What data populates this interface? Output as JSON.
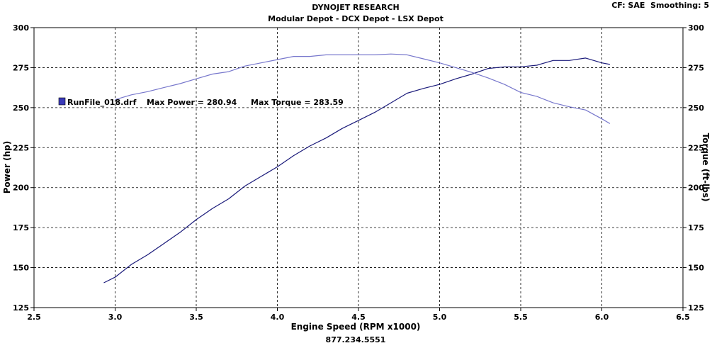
{
  "header": {
    "title": "DYNOJET RESEARCH",
    "subtitle": "Modular Depot - DCX Depot - LSX Depot",
    "settings": "CF: SAE  Smoothing: 5"
  },
  "footer": {
    "phone": "877.234.5551"
  },
  "legend": {
    "run_label": "RunFile_018.drf",
    "max_power_label": "Max Power = 280.94",
    "max_torque_label": "Max Torque = 283.59"
  },
  "chart_data": {
    "type": "line",
    "xlabel": "Engine Speed (RPM x1000)",
    "ylabel_left": "Power (hp)",
    "ylabel_right": "Torque (ft-lbs)",
    "xlim": [
      2.5,
      6.5
    ],
    "ylim": [
      125,
      300
    ],
    "x_ticks": [
      "2.5",
      "3.0",
      "3.5",
      "4.0",
      "4.5",
      "5.0",
      "5.5",
      "6.0",
      "6.5"
    ],
    "y_ticks": [
      "125",
      "150",
      "175",
      "200",
      "225",
      "250",
      "275",
      "300"
    ],
    "grid": true,
    "series": [
      {
        "role": "power",
        "color": "#1a1a7a",
        "x": [
          2.93,
          3.0,
          3.1,
          3.2,
          3.3,
          3.4,
          3.5,
          3.6,
          3.7,
          3.8,
          3.9,
          4.0,
          4.1,
          4.2,
          4.3,
          4.4,
          4.5,
          4.6,
          4.7,
          4.8,
          4.9,
          5.0,
          5.1,
          5.2,
          5.3,
          5.4,
          5.5,
          5.6,
          5.7,
          5.8,
          5.9,
          6.0,
          6.05
        ],
        "values": [
          140.5,
          144,
          152,
          158,
          165,
          172,
          180,
          187,
          193,
          201,
          207,
          213,
          220,
          226,
          231,
          237,
          242,
          247,
          253,
          259,
          262,
          264.5,
          268,
          271,
          274.5,
          275.5,
          275.5,
          276.5,
          279.5,
          279.5,
          281,
          278,
          277
        ]
      },
      {
        "role": "torque",
        "color": "#7777cc",
        "x": [
          3.0,
          3.1,
          3.2,
          3.3,
          3.4,
          3.5,
          3.6,
          3.7,
          3.8,
          3.9,
          4.0,
          4.1,
          4.2,
          4.3,
          4.4,
          4.5,
          4.6,
          4.7,
          4.8,
          4.9,
          5.0,
          5.1,
          5.2,
          5.3,
          5.4,
          5.5,
          5.6,
          5.7,
          5.8,
          5.9,
          6.0,
          6.05
        ],
        "values": [
          255,
          258,
          260,
          262.5,
          265,
          268,
          271,
          272.5,
          276,
          278,
          280,
          282,
          282,
          283,
          283,
          283,
          283,
          283.5,
          283,
          280.5,
          278,
          275,
          272,
          268.5,
          264.5,
          259.5,
          257,
          253,
          250.5,
          248.5,
          243,
          240
        ]
      }
    ]
  }
}
